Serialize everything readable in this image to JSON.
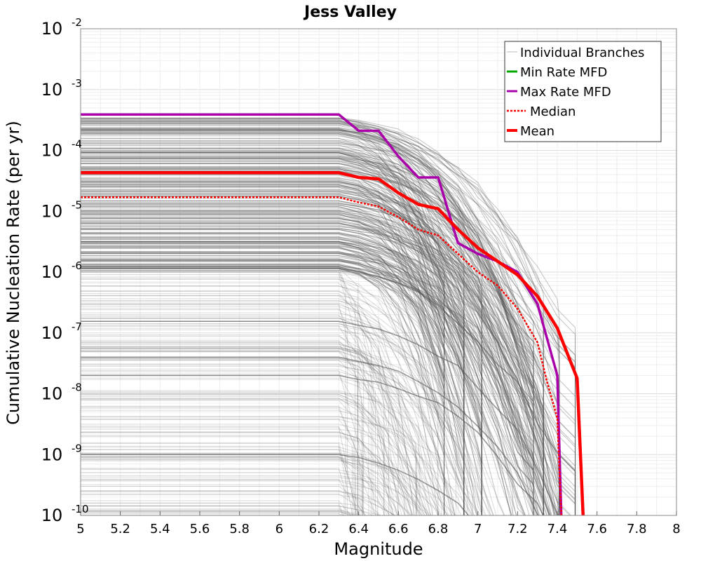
{
  "chart_data": {
    "type": "line",
    "title": "Jess Valley",
    "xlabel": "Magnitude",
    "ylabel": "Cumulative Nucleation Rate (per yr)",
    "xlim": [
      5,
      8
    ],
    "ylim": [
      1e-10,
      0.01
    ],
    "yscale": "log",
    "grid": true,
    "legend_position": "top-right",
    "x_ticks": [
      "5",
      "5.2",
      "5.4",
      "5.6",
      "5.8",
      "6",
      "6.2",
      "6.4",
      "6.6",
      "6.8",
      "7",
      "7.2",
      "7.4",
      "7.6",
      "7.8",
      "8"
    ],
    "y_ticks": [
      {
        "base": "10",
        "exp": "-2",
        "value": 0.01
      },
      {
        "base": "10",
        "exp": "-3",
        "value": 0.001
      },
      {
        "base": "10",
        "exp": "-4",
        "value": 0.0001
      },
      {
        "base": "10",
        "exp": "-5",
        "value": 1e-05
      },
      {
        "base": "10",
        "exp": "-6",
        "value": 1e-06
      },
      {
        "base": "10",
        "exp": "-7",
        "value": 1e-07
      },
      {
        "base": "10",
        "exp": "-8",
        "value": 1e-08
      },
      {
        "base": "10",
        "exp": "-9",
        "value": 1e-09
      },
      {
        "base": "10",
        "exp": "-10",
        "value": 1e-10
      }
    ],
    "colors": {
      "branches": "#555555",
      "min": "#00aa00",
      "max": "#aa00aa",
      "median": "#ff0000",
      "mean": "#ff0000"
    },
    "legend": [
      {
        "label": "Individual Branches",
        "key": "branches"
      },
      {
        "label": "Min Rate MFD",
        "key": "min"
      },
      {
        "label": "Max Rate MFD",
        "key": "max"
      },
      {
        "label": "Median",
        "key": "median"
      },
      {
        "label": "Mean",
        "key": "mean"
      }
    ],
    "series": [
      {
        "name": "Max Rate MFD",
        "key": "max",
        "x": [
          5.0,
          6.3,
          6.4,
          6.5,
          6.6,
          6.7,
          6.8,
          6.9,
          7.0,
          7.1,
          7.2,
          7.3,
          7.4,
          7.42
        ],
        "y": [
          0.00039,
          0.00039,
          0.00021,
          0.00021,
          8e-05,
          3.6e-05,
          3.6e-05,
          3e-06,
          2e-06,
          1.5e-06,
          1e-06,
          3e-07,
          2e-08,
          1e-10
        ]
      },
      {
        "name": "Median",
        "key": "median",
        "x": [
          5.0,
          6.3,
          6.4,
          6.5,
          6.6,
          6.7,
          6.8,
          6.9,
          7.0,
          7.1,
          7.2,
          7.3,
          7.35,
          7.4,
          7.42
        ],
        "y": [
          1.7e-05,
          1.7e-05,
          1.4e-05,
          1.2e-05,
          8e-06,
          5e-06,
          4e-06,
          2e-06,
          1e-06,
          6e-07,
          2.5e-07,
          7e-08,
          1.5e-08,
          4e-09,
          1e-10
        ]
      },
      {
        "name": "Mean",
        "key": "mean",
        "x": [
          5.0,
          6.3,
          6.4,
          6.5,
          6.6,
          6.7,
          6.8,
          6.9,
          7.0,
          7.1,
          7.2,
          7.3,
          7.4,
          7.5,
          7.53
        ],
        "y": [
          4.3e-05,
          4.3e-05,
          3.6e-05,
          3.4e-05,
          2e-05,
          1.3e-05,
          1.1e-05,
          5e-06,
          2.5e-06,
          1.5e-06,
          9e-07,
          4e-07,
          1.2e-07,
          1.8e-08,
          1e-10
        ]
      }
    ]
  }
}
